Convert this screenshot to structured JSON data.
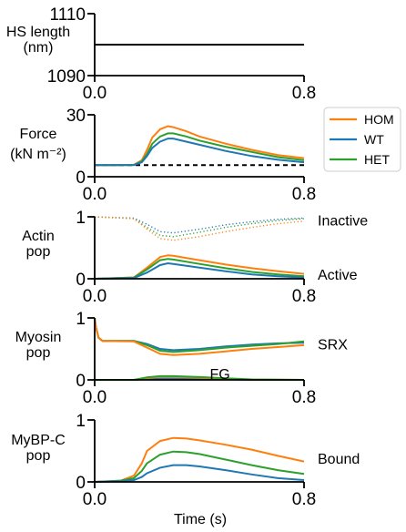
{
  "colors": {
    "HOM": "#ff7f0e",
    "WT": "#1f77b4",
    "HET": "#2ca02c"
  },
  "xlabel": "Time (s)",
  "legend": {
    "placement": "right",
    "entries": [
      "HOM",
      "WT",
      "HET"
    ]
  },
  "chart_data": [
    {
      "type": "line",
      "ylabel": [
        "HS length",
        "(nm)"
      ],
      "xlim": [
        0.0,
        0.8
      ],
      "ylim": [
        1090,
        1110
      ],
      "xticks": [
        "0.0",
        "0.8"
      ],
      "yticks": [
        "1090",
        "1110"
      ],
      "series": [
        {
          "id": "hs",
          "color": "#000000",
          "style": "solid",
          "x": [
            0.0,
            0.8
          ],
          "y": [
            1100,
            1100
          ]
        }
      ],
      "annotations": []
    },
    {
      "type": "line",
      "ylabel": [
        "Force",
        "(kN m⁻²)"
      ],
      "xlim": [
        0.0,
        0.8
      ],
      "ylim": [
        0,
        30
      ],
      "xticks": [
        "0.0",
        "0.8"
      ],
      "yticks": [
        "0",
        "30"
      ],
      "series": [
        {
          "id": "passive",
          "color": "#000000",
          "style": "dashed",
          "x": [
            0.0,
            0.8
          ],
          "y": [
            5.6,
            5.6
          ]
        },
        {
          "id": "HOM",
          "name": "HOM",
          "color": "#ff7f0e",
          "style": "solid",
          "x": [
            0.0,
            0.15,
            0.18,
            0.2,
            0.22,
            0.25,
            0.28,
            0.3,
            0.35,
            0.4,
            0.5,
            0.6,
            0.7,
            0.8
          ],
          "y": [
            5.6,
            5.8,
            8,
            13,
            19,
            23,
            24.5,
            24,
            22,
            19.5,
            16,
            13,
            10.5,
            9
          ]
        },
        {
          "id": "HET",
          "name": "HET",
          "color": "#2ca02c",
          "style": "solid",
          "x": [
            0.0,
            0.15,
            0.18,
            0.2,
            0.22,
            0.25,
            0.28,
            0.3,
            0.35,
            0.4,
            0.5,
            0.6,
            0.7,
            0.8
          ],
          "y": [
            5.6,
            5.7,
            7.5,
            11,
            16,
            19.5,
            21,
            21,
            19.5,
            17.5,
            14.5,
            12,
            9.5,
            8
          ]
        },
        {
          "id": "WT",
          "name": "WT",
          "color": "#1f77b4",
          "style": "solid",
          "x": [
            0.0,
            0.15,
            0.18,
            0.2,
            0.22,
            0.25,
            0.28,
            0.3,
            0.35,
            0.4,
            0.5,
            0.6,
            0.7,
            0.8
          ],
          "y": [
            5.6,
            5.7,
            7,
            10,
            14,
            17,
            18.5,
            18.5,
            17,
            15.5,
            12.5,
            10,
            8.2,
            7
          ]
        }
      ],
      "annotations": []
    },
    {
      "type": "line",
      "ylabel": [
        "Actin",
        "pop"
      ],
      "xlim": [
        0.0,
        0.8
      ],
      "ylim": [
        0,
        1
      ],
      "xticks": [
        "0.0",
        "0.8"
      ],
      "yticks": [
        "0",
        "1"
      ],
      "series": [
        {
          "id": "inactive-WT",
          "color": "#1f77b4",
          "style": "dotted",
          "x": [
            0.0,
            0.15,
            0.2,
            0.25,
            0.3,
            0.4,
            0.5,
            0.6,
            0.7,
            0.8
          ],
          "y": [
            1.0,
            0.98,
            0.88,
            0.76,
            0.74,
            0.8,
            0.87,
            0.92,
            0.96,
            0.98
          ]
        },
        {
          "id": "inactive-HET",
          "color": "#2ca02c",
          "style": "dotted",
          "x": [
            0.0,
            0.15,
            0.2,
            0.25,
            0.3,
            0.4,
            0.5,
            0.6,
            0.7,
            0.8
          ],
          "y": [
            1.0,
            0.97,
            0.83,
            0.7,
            0.68,
            0.75,
            0.83,
            0.89,
            0.94,
            0.97
          ]
        },
        {
          "id": "inactive-HOM",
          "color": "#ff7f0e",
          "style": "dotted",
          "x": [
            0.0,
            0.15,
            0.2,
            0.25,
            0.3,
            0.4,
            0.5,
            0.6,
            0.7,
            0.8
          ],
          "y": [
            1.0,
            0.97,
            0.8,
            0.65,
            0.62,
            0.68,
            0.76,
            0.83,
            0.89,
            0.93
          ]
        },
        {
          "id": "active-HOM",
          "color": "#ff7f0e",
          "style": "solid",
          "x": [
            0.0,
            0.15,
            0.2,
            0.25,
            0.28,
            0.3,
            0.4,
            0.5,
            0.6,
            0.7,
            0.8
          ],
          "y": [
            0.0,
            0.02,
            0.18,
            0.35,
            0.38,
            0.37,
            0.3,
            0.23,
            0.17,
            0.12,
            0.08
          ]
        },
        {
          "id": "active-HET",
          "color": "#2ca02c",
          "style": "solid",
          "x": [
            0.0,
            0.15,
            0.2,
            0.25,
            0.28,
            0.3,
            0.4,
            0.5,
            0.6,
            0.7,
            0.8
          ],
          "y": [
            0.0,
            0.02,
            0.15,
            0.3,
            0.32,
            0.31,
            0.24,
            0.17,
            0.11,
            0.07,
            0.04
          ]
        },
        {
          "id": "active-WT",
          "color": "#1f77b4",
          "style": "solid",
          "x": [
            0.0,
            0.15,
            0.2,
            0.25,
            0.28,
            0.3,
            0.4,
            0.5,
            0.6,
            0.7,
            0.8
          ],
          "y": [
            0.0,
            0.01,
            0.1,
            0.22,
            0.25,
            0.24,
            0.18,
            0.12,
            0.07,
            0.04,
            0.02
          ]
        }
      ],
      "annotations": [
        {
          "text": "Inactive",
          "y": 0.95
        },
        {
          "text": "Active",
          "y": 0.07
        }
      ]
    },
    {
      "type": "line",
      "ylabel": [
        "Myosin",
        "pop"
      ],
      "xlim": [
        0.0,
        0.8
      ],
      "ylim": [
        0,
        1
      ],
      "xticks": [
        "0.0",
        "0.8"
      ],
      "yticks": [
        "0",
        "1"
      ],
      "series": [
        {
          "id": "srx-WT",
          "color": "#1f77b4",
          "style": "solid",
          "x": [
            0.0,
            0.005,
            0.015,
            0.03,
            0.15,
            0.2,
            0.25,
            0.3,
            0.4,
            0.5,
            0.6,
            0.7,
            0.8
          ],
          "y": [
            1.0,
            0.85,
            0.68,
            0.63,
            0.63,
            0.58,
            0.5,
            0.48,
            0.5,
            0.54,
            0.57,
            0.59,
            0.6
          ]
        },
        {
          "id": "srx-HET",
          "color": "#2ca02c",
          "style": "solid",
          "x": [
            0.0,
            0.005,
            0.015,
            0.03,
            0.15,
            0.2,
            0.25,
            0.3,
            0.4,
            0.5,
            0.6,
            0.7,
            0.8
          ],
          "y": [
            1.0,
            0.85,
            0.68,
            0.63,
            0.63,
            0.56,
            0.47,
            0.45,
            0.48,
            0.52,
            0.55,
            0.58,
            0.62
          ]
        },
        {
          "id": "srx-HOM",
          "color": "#ff7f0e",
          "style": "solid",
          "x": [
            0.0,
            0.005,
            0.015,
            0.03,
            0.15,
            0.2,
            0.25,
            0.3,
            0.4,
            0.5,
            0.6,
            0.7,
            0.8
          ],
          "y": [
            1.0,
            0.85,
            0.68,
            0.63,
            0.62,
            0.52,
            0.42,
            0.4,
            0.42,
            0.46,
            0.5,
            0.53,
            0.56
          ]
        },
        {
          "id": "fg-WT",
          "color": "#1f77b4",
          "style": "solid",
          "x": [
            0.0,
            0.15,
            0.2,
            0.25,
            0.3,
            0.4,
            0.5,
            0.6,
            0.8
          ],
          "y": [
            0.0,
            0.0,
            0.01,
            0.02,
            0.02,
            0.015,
            0.01,
            0.0,
            0.0
          ]
        },
        {
          "id": "fg-HOM",
          "color": "#ff7f0e",
          "style": "solid",
          "x": [
            0.0,
            0.15,
            0.2,
            0.25,
            0.3,
            0.4,
            0.5,
            0.6,
            0.8
          ],
          "y": [
            0.0,
            0.0,
            0.03,
            0.05,
            0.05,
            0.035,
            0.02,
            0.005,
            0.0
          ]
        },
        {
          "id": "fg-HET",
          "color": "#2ca02c",
          "style": "solid",
          "x": [
            0.0,
            0.15,
            0.2,
            0.25,
            0.3,
            0.4,
            0.5,
            0.6,
            0.8
          ],
          "y": [
            0.0,
            0.0,
            0.04,
            0.06,
            0.06,
            0.045,
            0.025,
            0.008,
            0.0
          ]
        }
      ],
      "annotations": [
        {
          "text": "SRX",
          "y": 0.58
        },
        {
          "text": "FG",
          "x": 0.44,
          "y": 0.1
        }
      ]
    },
    {
      "type": "line",
      "ylabel": [
        "MyBP-C",
        "pop"
      ],
      "xlim": [
        0.0,
        0.8
      ],
      "ylim": [
        0,
        1
      ],
      "xticks": [
        "0.0",
        "0.8"
      ],
      "yticks": [
        "0",
        "1"
      ],
      "series": [
        {
          "id": "bound-HOM",
          "color": "#ff7f0e",
          "style": "solid",
          "x": [
            0.0,
            0.1,
            0.15,
            0.18,
            0.2,
            0.25,
            0.3,
            0.35,
            0.4,
            0.5,
            0.6,
            0.7,
            0.8
          ],
          "y": [
            0.0,
            0.02,
            0.1,
            0.3,
            0.5,
            0.66,
            0.71,
            0.7,
            0.67,
            0.6,
            0.52,
            0.42,
            0.33
          ]
        },
        {
          "id": "bound-HET",
          "color": "#2ca02c",
          "style": "solid",
          "x": [
            0.0,
            0.1,
            0.15,
            0.18,
            0.2,
            0.25,
            0.3,
            0.35,
            0.4,
            0.5,
            0.6,
            0.7,
            0.8
          ],
          "y": [
            0.0,
            0.02,
            0.06,
            0.18,
            0.3,
            0.44,
            0.49,
            0.48,
            0.45,
            0.36,
            0.27,
            0.19,
            0.13
          ]
        },
        {
          "id": "bound-WT",
          "color": "#1f77b4",
          "style": "solid",
          "x": [
            0.0,
            0.1,
            0.15,
            0.18,
            0.2,
            0.25,
            0.3,
            0.35,
            0.4,
            0.5,
            0.6,
            0.7,
            0.8
          ],
          "y": [
            0.0,
            0.01,
            0.03,
            0.08,
            0.14,
            0.23,
            0.27,
            0.27,
            0.25,
            0.19,
            0.12,
            0.06,
            0.03
          ]
        }
      ],
      "annotations": [
        {
          "text": "Bound",
          "y": 0.38
        }
      ]
    }
  ]
}
